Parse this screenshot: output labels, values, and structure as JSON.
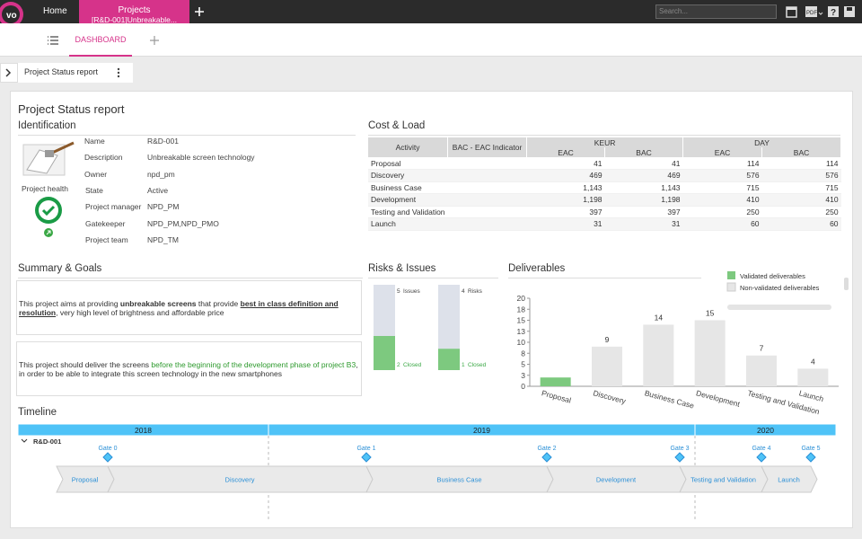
{
  "topbar": {
    "home": "Home",
    "tab_title": "Projects",
    "tab_subtitle": "[R&D-001]Unbreakable...",
    "search_placeholder": "Search..."
  },
  "subnav": {
    "dashboard": "DASHBOARD"
  },
  "breadcrumb": {
    "title": "Project Status report"
  },
  "report": {
    "title": "Project Status report"
  },
  "identification": {
    "title": "Identification",
    "health_label": "Project health",
    "fields": [
      {
        "label": "Name",
        "value": "R&D-001"
      },
      {
        "label": "Description",
        "value": "Unbreakable screen technology"
      },
      {
        "label": "Owner",
        "value": "npd_pm"
      },
      {
        "label": "State",
        "value": "Active"
      },
      {
        "label": "Project manager",
        "value": "NPD_PM"
      },
      {
        "label": "Gatekeeper",
        "value": "NPD_PM,NPD_PMO"
      },
      {
        "label": "Project team",
        "value": "NPD_TM"
      }
    ]
  },
  "cost_load": {
    "title": "Cost & Load",
    "headers": {
      "activity": "Activity",
      "indicator": "BAC - EAC Indicator",
      "keur": "KEUR",
      "day": "DAY",
      "keur_eac": "EAC",
      "keur_bac": "BAC",
      "day_eac": "EAC",
      "day_bac": "BAC"
    },
    "rows": [
      {
        "activity": "Proposal",
        "keur_eac": "41",
        "keur_bac": "41",
        "day_eac": "114",
        "day_bac": "114"
      },
      {
        "activity": "Discovery",
        "keur_eac": "469",
        "keur_bac": "469",
        "day_eac": "576",
        "day_bac": "576"
      },
      {
        "activity": "Business Case",
        "keur_eac": "1,143",
        "keur_bac": "1,143",
        "day_eac": "715",
        "day_bac": "715"
      },
      {
        "activity": "Development",
        "keur_eac": "1,198",
        "keur_bac": "1,198",
        "day_eac": "410",
        "day_bac": "410"
      },
      {
        "activity": "Testing and Validation",
        "keur_eac": "397",
        "keur_bac": "397",
        "day_eac": "250",
        "day_bac": "250"
      },
      {
        "activity": "Launch",
        "keur_eac": "31",
        "keur_bac": "31",
        "day_eac": "60",
        "day_bac": "60"
      }
    ]
  },
  "summary": {
    "title": "Summary & Goals",
    "paragraphs": [
      [
        "This project aims at providing ",
        "unbreakable screens",
        " that provide ",
        "best in class definition and resolution",
        ", very high level of brightness and affordable price"
      ],
      [
        "This project should deliver the screens ",
        "before the beginning of the development phase of project B3",
        ", in order to be able to integrate this screen technology in the new smartphones"
      ]
    ]
  },
  "risks_issues": {
    "title": "Risks & Issues",
    "closed_label": "Closed",
    "items": [
      {
        "name": "Issues",
        "total": 5,
        "closed": 2
      },
      {
        "name": "Risks",
        "total": 4,
        "closed": 1
      }
    ]
  },
  "chart_data": {
    "type": "bar",
    "title": "Deliverables",
    "categories": [
      "Proposal",
      "Discovery",
      "Business Case",
      "Development",
      "Testing and Validation",
      "Launch"
    ],
    "series": [
      {
        "name": "Validated deliverables",
        "color": "#7dc97f",
        "values": [
          2,
          0,
          0,
          0,
          0,
          0
        ]
      },
      {
        "name": "Non-validated deliverables",
        "color": "#e6e6e6",
        "values": [
          null,
          9,
          14,
          15,
          7,
          4
        ]
      }
    ],
    "stacked": true,
    "ylim": [
      0,
      20
    ],
    "yticks": [
      0,
      {
        "value": 2.5,
        "label": "3"
      },
      5,
      {
        "value": 7.5,
        "label": "8"
      },
      10,
      {
        "value": 12.5,
        "label": "13"
      },
      15,
      {
        "value": 17.5,
        "label": "18"
      },
      20
    ],
    "grid": false
  },
  "timeline": {
    "title": "Timeline",
    "years": [
      "2018",
      "2019",
      "2020"
    ],
    "project": "R&D-001",
    "gates": [
      "Gate 0",
      "Gate 1",
      "Gate 2",
      "Gate 3",
      "Gate 4",
      "Gate 5"
    ],
    "phases": [
      "Proposal",
      "Discovery",
      "Business Case",
      "Development",
      "Testing and Validation",
      "Launch"
    ]
  }
}
